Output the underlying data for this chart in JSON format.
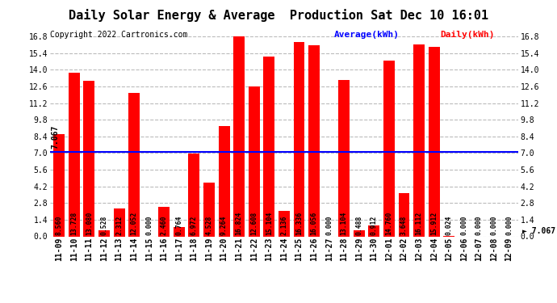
{
  "title": "Daily Solar Energy & Average  Production Sat Dec 10 16:01",
  "copyright": "Copyright 2022 Cartronics.com",
  "average_label": "Average(kWh)",
  "daily_label": "Daily(kWh)",
  "average_value": 7.067,
  "categories": [
    "11-09",
    "11-10",
    "11-11",
    "11-12",
    "11-13",
    "11-14",
    "11-15",
    "11-16",
    "11-17",
    "11-18",
    "11-19",
    "11-20",
    "11-21",
    "11-22",
    "11-23",
    "11-24",
    "11-25",
    "11-26",
    "11-27",
    "11-28",
    "11-29",
    "11-30",
    "12-01",
    "12-02",
    "12-03",
    "12-04",
    "12-05",
    "12-06",
    "12-07",
    "12-08",
    "12-09"
  ],
  "values": [
    8.56,
    13.728,
    13.08,
    0.528,
    2.312,
    12.052,
    0.0,
    2.46,
    0.764,
    6.972,
    4.528,
    9.264,
    16.824,
    12.608,
    15.104,
    2.136,
    16.336,
    16.056,
    0.0,
    13.104,
    0.488,
    0.912,
    14.76,
    3.648,
    16.112,
    15.912,
    0.024,
    0.0,
    0.0,
    0.0,
    0.0
  ],
  "bar_color": "#ff0000",
  "average_line_color": "#0000ff",
  "ylim": [
    0.0,
    16.8
  ],
  "yticks": [
    0.0,
    1.4,
    2.8,
    4.2,
    5.6,
    7.0,
    8.4,
    9.8,
    11.2,
    12.6,
    14.0,
    15.4,
    16.8
  ],
  "grid_color": "#bbbbbb",
  "bg_color": "#ffffff",
  "title_fontsize": 11,
  "copyright_fontsize": 7,
  "bar_label_fontsize": 5.8,
  "tick_fontsize": 7,
  "legend_fontsize": 8,
  "avg_label_fontsize": 7
}
